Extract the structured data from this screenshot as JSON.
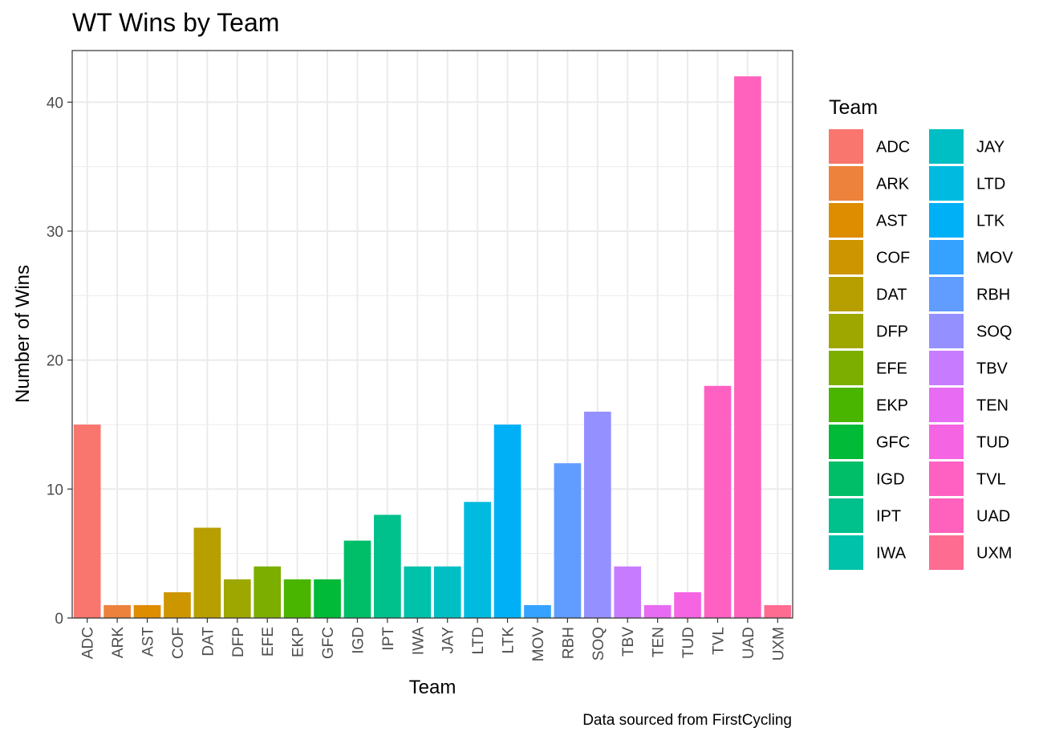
{
  "chart_data": {
    "type": "bar",
    "title": "WT Wins by Team",
    "xlabel": "Team",
    "ylabel": "Number of Wins",
    "caption": "Data sourced from FirstCycling",
    "legend_title": "Team",
    "legend_position": "right",
    "grid": true,
    "ylim": [
      0,
      44
    ],
    "yticks": [
      0,
      10,
      20,
      30,
      40
    ],
    "categories": [
      "ADC",
      "ARK",
      "AST",
      "COF",
      "DAT",
      "DFP",
      "EFE",
      "EKP",
      "GFC",
      "IGD",
      "IPT",
      "IWA",
      "JAY",
      "LTD",
      "LTK",
      "MOV",
      "RBH",
      "SOQ",
      "TBV",
      "TEN",
      "TUD",
      "TVL",
      "UAD",
      "UXM"
    ],
    "values": [
      15,
      1,
      1,
      2,
      7,
      3,
      4,
      3,
      3,
      6,
      8,
      4,
      4,
      9,
      15,
      1,
      12,
      16,
      4,
      1,
      2,
      18,
      42,
      1
    ],
    "colors": [
      "#F8766D",
      "#EC823C",
      "#DE8C00",
      "#CD9600",
      "#B79F00",
      "#9DA700",
      "#7CAE00",
      "#49B500",
      "#00BA38",
      "#00BE67",
      "#00C08B",
      "#00C1A9",
      "#00BFC4",
      "#00BAE0",
      "#00B0F6",
      "#35A2FF",
      "#619CFF",
      "#9590FF",
      "#C77CFF",
      "#E76BF3",
      "#F564E3",
      "#FF61C3",
      "#FF62BC",
      "#FF6C91"
    ]
  }
}
